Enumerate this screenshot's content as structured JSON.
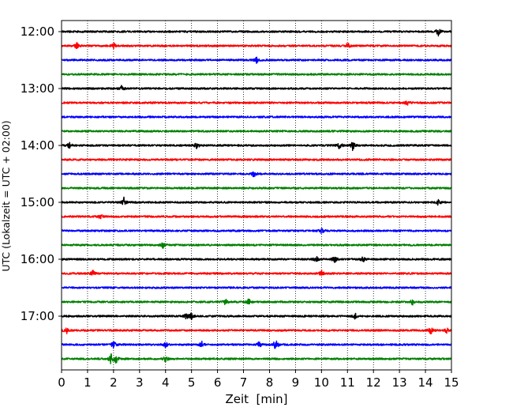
{
  "chart_data": {
    "type": "line",
    "title": "",
    "xlabel": "Zeit  [min]",
    "ylabel": "UTC (Lokalzeit = UTC + 02:00)",
    "xlim": [
      0,
      15
    ],
    "x_ticks": [
      "0",
      "1",
      "2",
      "3",
      "4",
      "5",
      "6",
      "7",
      "8",
      "9",
      "10",
      "11",
      "12",
      "13",
      "14",
      "15"
    ],
    "y_ticks": [
      "12:00",
      "13:00",
      "14:00",
      "15:00",
      "16:00",
      "17:00"
    ],
    "grid": "vertical dotted lines at each minute",
    "line_colors": [
      "#000000",
      "#ff0000",
      "#0000ff",
      "#008000"
    ],
    "traces": [
      {
        "start": "12:00",
        "color": "#000000",
        "events": [
          {
            "t": 14.5,
            "amp": 1.0
          }
        ]
      },
      {
        "start": "12:15",
        "color": "#ff0000",
        "events": [
          {
            "t": 0.6,
            "amp": 0.8
          },
          {
            "t": 2.0,
            "amp": 0.7
          },
          {
            "t": 11.0,
            "amp": 0.8
          }
        ]
      },
      {
        "start": "12:30",
        "color": "#0000ff",
        "events": [
          {
            "t": 7.5,
            "amp": 0.6
          }
        ]
      },
      {
        "start": "12:45",
        "color": "#008000",
        "events": []
      },
      {
        "start": "13:00",
        "color": "#000000",
        "events": [
          {
            "t": 2.3,
            "amp": 0.6
          }
        ]
      },
      {
        "start": "13:15",
        "color": "#ff0000",
        "events": [
          {
            "t": 13.3,
            "amp": 0.5
          }
        ]
      },
      {
        "start": "13:30",
        "color": "#0000ff",
        "events": []
      },
      {
        "start": "13:45",
        "color": "#008000",
        "events": []
      },
      {
        "start": "14:00",
        "color": "#000000",
        "events": [
          {
            "t": 0.3,
            "amp": 0.8
          },
          {
            "t": 5.2,
            "amp": 0.8
          },
          {
            "t": 10.7,
            "amp": 0.9
          },
          {
            "t": 11.2,
            "amp": 1.0
          }
        ]
      },
      {
        "start": "14:15",
        "color": "#ff0000",
        "events": []
      },
      {
        "start": "14:30",
        "color": "#0000ff",
        "events": [
          {
            "t": 7.4,
            "amp": 0.7
          }
        ]
      },
      {
        "start": "14:45",
        "color": "#008000",
        "events": []
      },
      {
        "start": "15:00",
        "color": "#000000",
        "events": [
          {
            "t": 2.4,
            "amp": 1.0
          },
          {
            "t": 14.5,
            "amp": 0.7
          }
        ]
      },
      {
        "start": "15:15",
        "color": "#ff0000",
        "events": [
          {
            "t": 1.5,
            "amp": 0.6
          }
        ]
      },
      {
        "start": "15:30",
        "color": "#0000ff",
        "events": [
          {
            "t": 10.0,
            "amp": 0.6
          }
        ]
      },
      {
        "start": "15:45",
        "color": "#008000",
        "events": [
          {
            "t": 3.9,
            "amp": 0.6
          }
        ]
      },
      {
        "start": "16:00",
        "color": "#000000",
        "events": [
          {
            "t": 9.8,
            "amp": 0.7
          },
          {
            "t": 10.5,
            "amp": 0.8
          },
          {
            "t": 11.6,
            "amp": 0.6
          }
        ]
      },
      {
        "start": "16:15",
        "color": "#ff0000",
        "events": [
          {
            "t": 1.2,
            "amp": 0.6
          },
          {
            "t": 10.0,
            "amp": 0.6
          }
        ]
      },
      {
        "start": "16:30",
        "color": "#0000ff",
        "events": []
      },
      {
        "start": "16:45",
        "color": "#008000",
        "events": [
          {
            "t": 6.3,
            "amp": 0.7
          },
          {
            "t": 7.2,
            "amp": 0.7
          },
          {
            "t": 13.5,
            "amp": 0.7
          }
        ]
      },
      {
        "start": "17:00",
        "color": "#000000",
        "events": [
          {
            "t": 4.8,
            "amp": 0.7
          },
          {
            "t": 5.0,
            "amp": 0.7
          },
          {
            "t": 11.3,
            "amp": 0.7
          }
        ]
      },
      {
        "start": "17:15",
        "color": "#ff0000",
        "events": [
          {
            "t": 0.2,
            "amp": 0.7
          },
          {
            "t": 14.2,
            "amp": 0.9
          },
          {
            "t": 14.8,
            "amp": 0.7
          }
        ]
      },
      {
        "start": "17:30",
        "color": "#0000ff",
        "events": [
          {
            "t": 2.0,
            "amp": 0.8
          },
          {
            "t": 4.0,
            "amp": 0.7
          },
          {
            "t": 5.4,
            "amp": 0.8
          },
          {
            "t": 7.6,
            "amp": 0.7
          },
          {
            "t": 8.2,
            "amp": 0.7
          },
          {
            "t": 8.3,
            "amp": 0.7
          }
        ]
      },
      {
        "start": "17:45",
        "color": "#008000",
        "events": [
          {
            "t": 1.9,
            "amp": 1.1
          },
          {
            "t": 2.1,
            "amp": 0.9
          },
          {
            "t": 4.0,
            "amp": 0.6
          }
        ]
      }
    ]
  }
}
